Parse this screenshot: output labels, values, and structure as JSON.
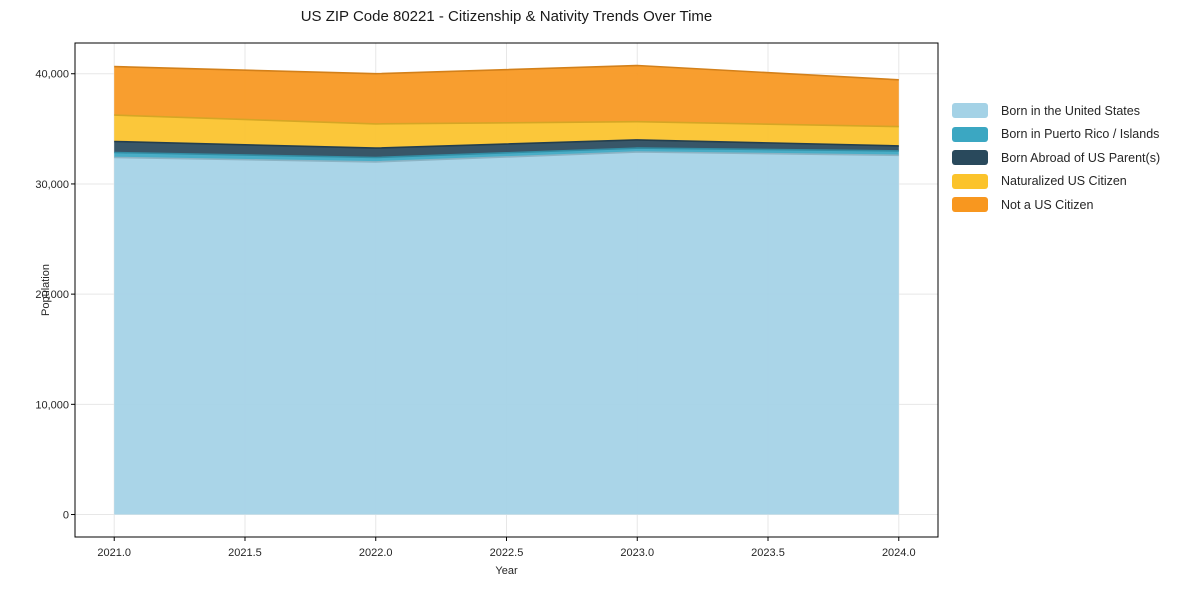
{
  "chart_data": {
    "type": "area",
    "stacked": true,
    "title": "US ZIP Code 80221 - Citizenship & Nativity Trends Over Time",
    "xlabel": "Year",
    "ylabel": "Population",
    "x": [
      2021,
      2022,
      2023,
      2024
    ],
    "series": [
      {
        "name": "Born in the United States",
        "color": "#a4d2e6",
        "values": [
          32400,
          32000,
          32900,
          32600
        ]
      },
      {
        "name": "Born in Puerto Rico / Islands",
        "color": "#3ba7c2",
        "values": [
          450,
          400,
          350,
          400
        ]
      },
      {
        "name": "Born Abroad of US Parent(s)",
        "color": "#29495c",
        "values": [
          1000,
          850,
          750,
          450
        ]
      },
      {
        "name": "Naturalized US Citizen",
        "color": "#fbc32b",
        "values": [
          2400,
          2200,
          1650,
          1750
        ]
      },
      {
        "name": "Not a US Citizen",
        "color": "#f8971f",
        "values": [
          4400,
          4550,
          5100,
          4250
        ]
      }
    ],
    "totals": [
      40650,
      40000,
      40750,
      39450
    ],
    "xlim": [
      2020.85,
      2024.15
    ],
    "ylim": [
      -2040,
      42790
    ],
    "xticks": {
      "values": [
        2021,
        2021.5,
        2022,
        2022.5,
        2023,
        2023.5,
        2024
      ],
      "labels": [
        "2021.0",
        "2021.5",
        "2022.0",
        "2022.5",
        "2023.0",
        "2023.5",
        "2024.0"
      ]
    },
    "yticks": {
      "values": [
        0,
        10000,
        20000,
        30000,
        40000
      ],
      "labels": [
        "0",
        "10,000",
        "20,000",
        "30,000",
        "40,000"
      ]
    },
    "grid": true,
    "legend_position": "right-outside"
  },
  "colors": {
    "grid": "#e7e7e7",
    "spine": "#000000",
    "tick_label": "#262626",
    "fill_opacity": 0.93
  }
}
